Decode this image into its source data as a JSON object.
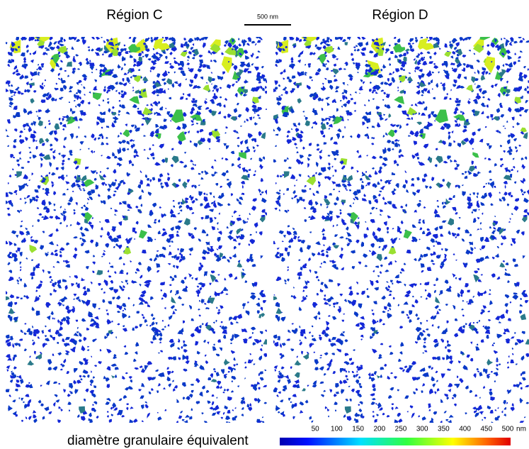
{
  "titles": [
    "Région C",
    "Région D"
  ],
  "scale_bar": "500 nm",
  "colorbar": {
    "label": "diamètre granulaire équivalent",
    "ticks": [
      50,
      100,
      150,
      200,
      250,
      300,
      350,
      400,
      450,
      500
    ],
    "unit": "nm"
  }
}
